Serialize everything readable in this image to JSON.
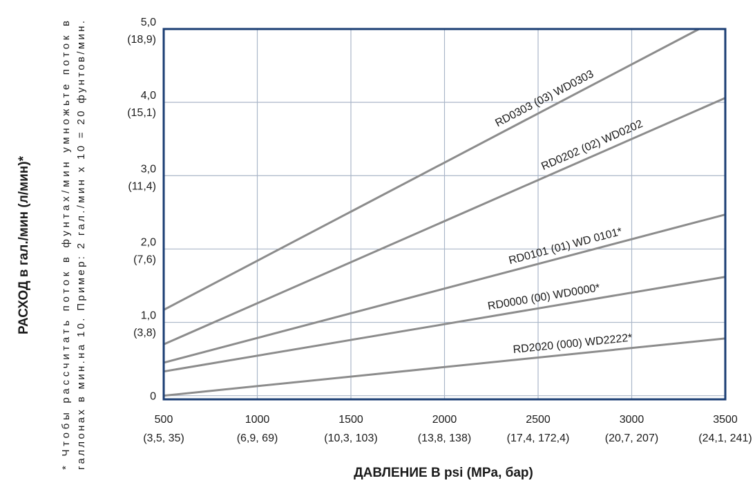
{
  "chart_data": {
    "type": "line",
    "xlabel": "ДАВЛЕНИЕ В psi (MPa, бар)",
    "ylabel": "РАСХОД в гал./мин (л/мин)*",
    "footnote_lines": [
      "* Чтобы рассчитать поток в фунтах/мин умножьте поток в",
      "галлонах в мин.на 10. Пример: 2 гал./мин x 10 = 20 фунтов/мин."
    ],
    "xlim": [
      500,
      3500
    ],
    "ylim": [
      -0.05,
      5.0
    ],
    "grid": true,
    "x_ticks": [
      {
        "value": 500,
        "label": "500",
        "sub": "(3,5, 35)"
      },
      {
        "value": 1000,
        "label": "1000",
        "sub": "(6,9, 69)"
      },
      {
        "value": 1500,
        "label": "1500",
        "sub": "(10,3, 103)"
      },
      {
        "value": 2000,
        "label": "2000",
        "sub": "(13,8, 138)"
      },
      {
        "value": 2500,
        "label": "2500",
        "sub": "(17,4, 172,4)"
      },
      {
        "value": 3000,
        "label": "3000",
        "sub": "(20,7, 207)"
      },
      {
        "value": 3500,
        "label": "3500",
        "sub": "(24,1, 241)"
      }
    ],
    "y_ticks": [
      {
        "value": 0.0,
        "label": "0",
        "sub": ""
      },
      {
        "value": 1.0,
        "label": "1,0",
        "sub": "(3,8)"
      },
      {
        "value": 2.0,
        "label": "2,0",
        "sub": "(7,6)"
      },
      {
        "value": 3.0,
        "label": "3,0",
        "sub": "(11,4)"
      },
      {
        "value": 4.0,
        "label": "4,0",
        "sub": "(15,1)"
      },
      {
        "value": 5.0,
        "label": "5,0",
        "sub": "(18,9)"
      }
    ],
    "series": [
      {
        "name": "RD0303 (03) WD0303",
        "x": [
          500,
          3360
        ],
        "y": [
          1.17,
          5.0
        ]
      },
      {
        "name": "RD0202 (02) WD0202",
        "x": [
          500,
          3500
        ],
        "y": [
          0.7,
          4.06
        ]
      },
      {
        "name": "RD0101 (01) WD 0101*",
        "x": [
          500,
          3500
        ],
        "y": [
          0.45,
          2.47
        ]
      },
      {
        "name": "RD0000 (00) WD0000*",
        "x": [
          500,
          3500
        ],
        "y": [
          0.33,
          1.62
        ]
      },
      {
        "name": "RD2020 (000) WD2222*",
        "x": [
          500,
          3500
        ],
        "y": [
          0.0,
          0.78
        ]
      }
    ],
    "series_label_anchor": [
      {
        "at": 0.72
      },
      {
        "at": 0.77
      },
      {
        "at": 0.72
      },
      {
        "at": 0.68
      },
      {
        "at": 0.73
      }
    ],
    "colors": {
      "frame": "#1a3d73",
      "grid": "#aab6c8",
      "line": "#8c8c8c"
    }
  }
}
